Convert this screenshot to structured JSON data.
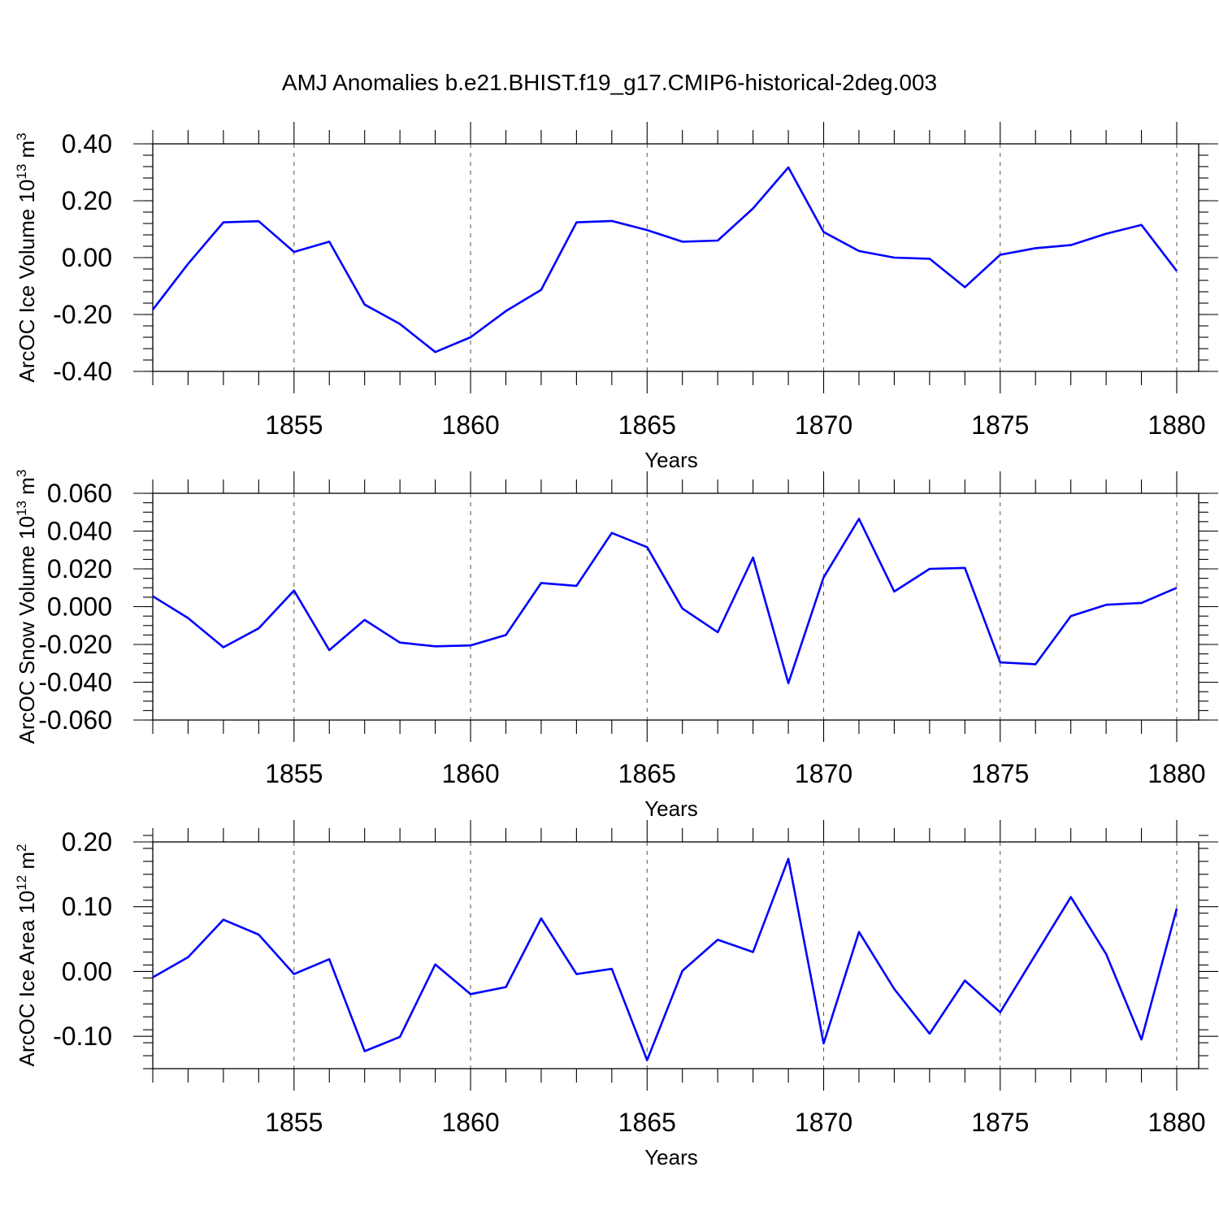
{
  "title": "AMJ Anomalies b.e21.BHIST.f19_g17.CMIP6-historical-2deg.003",
  "chart_data": [
    {
      "type": "line",
      "ylabel": "ArcOC Ice Volume 10",
      "ylabel_exp": "13",
      "ylabel_unit": " m",
      "ylabel_unit_exp": "3",
      "xlabel": "Years",
      "xlim": [
        1851,
        1880
      ],
      "ylim": [
        -0.4,
        0.4
      ],
      "xticks": [
        1855,
        1860,
        1865,
        1870,
        1875,
        1880
      ],
      "yticks": [
        -0.4,
        -0.2,
        0.0,
        0.2,
        0.4
      ],
      "ytick_labels": [
        "-0.40",
        "-0.20",
        "0.00",
        "0.20",
        "0.40"
      ],
      "y_minor_step": 0.04,
      "grid": "vertical dashed at major x ticks",
      "color": "#0000ff",
      "x": [
        1851,
        1852,
        1853,
        1854,
        1855,
        1856,
        1857,
        1858,
        1859,
        1860,
        1861,
        1862,
        1863,
        1864,
        1865,
        1866,
        1867,
        1868,
        1869,
        1870,
        1871,
        1872,
        1873,
        1874,
        1875,
        1876,
        1877,
        1878,
        1879,
        1880
      ],
      "values": [
        -0.183,
        -0.022,
        0.124,
        0.128,
        0.02,
        0.056,
        -0.165,
        -0.233,
        -0.332,
        -0.28,
        -0.188,
        -0.113,
        0.124,
        0.129,
        0.097,
        0.056,
        0.06,
        0.173,
        0.317,
        0.09,
        0.023,
        0.0,
        -0.004,
        -0.104,
        0.01,
        0.033,
        0.044,
        0.084,
        0.115,
        -0.047
      ]
    },
    {
      "type": "line",
      "ylabel": "ArcOC Snow Volume 10",
      "ylabel_exp": "13",
      "ylabel_unit": " m",
      "ylabel_unit_exp": "3",
      "xlabel": "Years",
      "xlim": [
        1851,
        1880
      ],
      "ylim": [
        -0.06,
        0.06
      ],
      "xticks": [
        1855,
        1860,
        1865,
        1870,
        1875,
        1880
      ],
      "yticks": [
        -0.06,
        -0.04,
        -0.02,
        0.0,
        0.02,
        0.04,
        0.06
      ],
      "ytick_labels": [
        "-0.060",
        "-0.040",
        "-0.020",
        "0.000",
        "0.020",
        "0.040",
        "0.060"
      ],
      "y_minor_step": 0.005,
      "grid": "vertical dashed at major x ticks",
      "color": "#0000ff",
      "x": [
        1851,
        1852,
        1853,
        1854,
        1855,
        1856,
        1857,
        1858,
        1859,
        1860,
        1861,
        1862,
        1863,
        1864,
        1865,
        1866,
        1867,
        1868,
        1869,
        1870,
        1871,
        1872,
        1873,
        1874,
        1875,
        1876,
        1877,
        1878,
        1879,
        1880
      ],
      "values": [
        0.0055,
        -0.006,
        -0.0215,
        -0.0115,
        0.0085,
        -0.023,
        -0.007,
        -0.019,
        -0.021,
        -0.0205,
        -0.015,
        0.0125,
        0.011,
        0.039,
        0.0315,
        -0.001,
        -0.0135,
        0.026,
        -0.0405,
        0.0155,
        0.0465,
        0.008,
        0.02,
        0.0205,
        -0.0295,
        -0.0305,
        -0.005,
        0.001,
        0.002,
        0.01
      ]
    },
    {
      "type": "line",
      "ylabel": "ArcOC Ice Area 10",
      "ylabel_exp": "12",
      "ylabel_unit": " m",
      "ylabel_unit_exp": "2",
      "xlabel": "Years",
      "xlim": [
        1851,
        1880
      ],
      "ylim": [
        -0.15,
        0.2
      ],
      "xticks": [
        1855,
        1860,
        1865,
        1870,
        1875,
        1880
      ],
      "yticks": [
        -0.1,
        0.0,
        0.1,
        0.2
      ],
      "ytick_labels": [
        "-0.10",
        "0.00",
        "0.10",
        "0.20"
      ],
      "y_minor_step": 0.02,
      "grid": "vertical dashed at major x ticks",
      "color": "#0000ff",
      "x": [
        1851,
        1852,
        1853,
        1854,
        1855,
        1856,
        1857,
        1858,
        1859,
        1860,
        1861,
        1862,
        1863,
        1864,
        1865,
        1866,
        1867,
        1868,
        1869,
        1870,
        1871,
        1872,
        1873,
        1874,
        1875,
        1876,
        1877,
        1878,
        1879,
        1880
      ],
      "values": [
        -0.009,
        0.022,
        0.08,
        0.057,
        -0.004,
        0.019,
        -0.123,
        -0.101,
        0.011,
        -0.035,
        -0.024,
        0.082,
        -0.004,
        0.004,
        -0.137,
        0.001,
        0.049,
        0.03,
        0.174,
        -0.111,
        0.061,
        -0.027,
        -0.096,
        -0.014,
        -0.063,
        0.026,
        0.115,
        0.027,
        -0.105,
        0.097
      ]
    }
  ]
}
